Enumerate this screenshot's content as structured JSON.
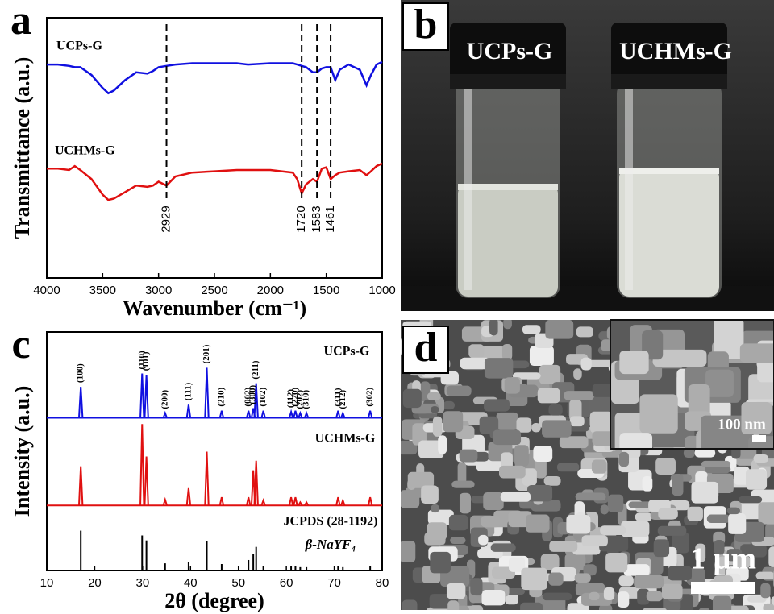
{
  "chart_data": [
    {
      "type": "line",
      "panel_label": "a",
      "xlabel": "Wavenumber (cm⁻¹)",
      "ylabel": "Transmittance (a.u.)",
      "xlim": [
        4000,
        1000
      ],
      "xticks": [
        4000,
        3500,
        3000,
        2500,
        2000,
        1500,
        1000
      ],
      "ylim": [
        0,
        100
      ],
      "x": [
        4000,
        3900,
        3800,
        3750,
        3700,
        3600,
        3500,
        3450,
        3400,
        3300,
        3200,
        3100,
        3050,
        3000,
        2929,
        2850,
        2700,
        2500,
        2300,
        2200,
        2000,
        1900,
        1800,
        1760,
        1720,
        1680,
        1620,
        1583,
        1540,
        1500,
        1461,
        1420,
        1380,
        1300,
        1200,
        1140,
        1100,
        1050,
        1000
      ],
      "series": [
        {
          "name": "UCPs-G",
          "color": "#1010e0",
          "values": [
            82,
            82,
            81.5,
            81,
            81,
            78,
            73,
            71,
            72,
            76,
            79,
            78.5,
            79.5,
            81,
            81.5,
            82,
            82.5,
            82.5,
            82.5,
            82,
            82.5,
            82.5,
            82.5,
            82,
            81.5,
            81,
            79,
            79,
            80.5,
            81,
            81,
            76,
            80,
            82,
            80,
            74,
            78,
            82,
            83
          ]
        },
        {
          "name": "UCHMs-G",
          "color": "#e01010",
          "values": [
            42,
            42,
            41.5,
            43,
            41.5,
            38,
            32,
            30,
            30.5,
            33,
            35.5,
            35,
            35.5,
            37,
            35.5,
            39,
            40.5,
            41,
            41.5,
            41.5,
            41.5,
            41,
            40.5,
            38,
            32.5,
            36,
            38,
            37,
            42,
            42.5,
            38,
            39.5,
            40.5,
            41,
            41.5,
            39.5,
            41,
            43,
            44
          ]
        }
      ],
      "vlines": [
        2929,
        1720,
        1583,
        1461
      ]
    },
    {
      "type": "peaks",
      "panel_label": "c",
      "xlabel": "2θ (degree)",
      "ylabel": "Intensity (a.u.)",
      "xlim": [
        10,
        80
      ],
      "xticks": [
        10,
        20,
        30,
        40,
        50,
        60,
        70,
        80
      ],
      "ylim": [
        0,
        100
      ],
      "x": [
        17.1,
        29.9,
        30.8,
        34.7,
        39.6,
        43.4,
        46.5,
        52.1,
        53.1,
        53.7,
        55.2,
        61.0,
        61.9,
        62.9,
        64.2,
        70.8,
        71.8,
        77.5
      ],
      "peak_labels": [
        "(100)",
        "(110)",
        "(101)",
        "(200)",
        "(111)",
        "(201)",
        "(210)",
        "(002)",
        "(300)",
        "(211)",
        "(102)",
        "(112)",
        "(220)",
        "(202)",
        "(310)",
        "(311)",
        "(212)",
        "(302)"
      ],
      "series": [
        {
          "name": "UCPs-G",
          "color": "#1010e0",
          "baseline": 64,
          "values": [
            77,
            82.6,
            82,
            66,
            69.5,
            85,
            67,
            67,
            68,
            78.5,
            67,
            66.5,
            67,
            66,
            66,
            67,
            66,
            67
          ]
        },
        {
          "name": "UCHMs-G",
          "color": "#e01010",
          "baseline": 27.3,
          "values": [
            43.7,
            61.4,
            47.8,
            29.7,
            34.5,
            49.8,
            30.7,
            30.7,
            42,
            46,
            29.4,
            30.7,
            30.7,
            28.6,
            28.6,
            30.7,
            29.4,
            30.7
          ]
        },
        {
          "name": "JCPDS (28-1192)",
          "phase": "β-NaYF₄",
          "color": "#000000",
          "baseline": 0,
          "values": [
            16.7,
            14.7,
            12.6,
            3,
            3.7,
            12.3,
            2.7,
            4.4,
            6.8,
            9.9,
            2,
            1.7,
            2,
            1.4,
            1.4,
            1.7,
            1.4,
            2
          ]
        }
      ]
    }
  ],
  "images": [
    {
      "panel_label": "b",
      "labels": [
        "UCPs-G",
        "UCHMs-G"
      ]
    },
    {
      "panel_label": "d",
      "inset_scale_label": "100 nm",
      "scale_label": "1 µm"
    }
  ]
}
